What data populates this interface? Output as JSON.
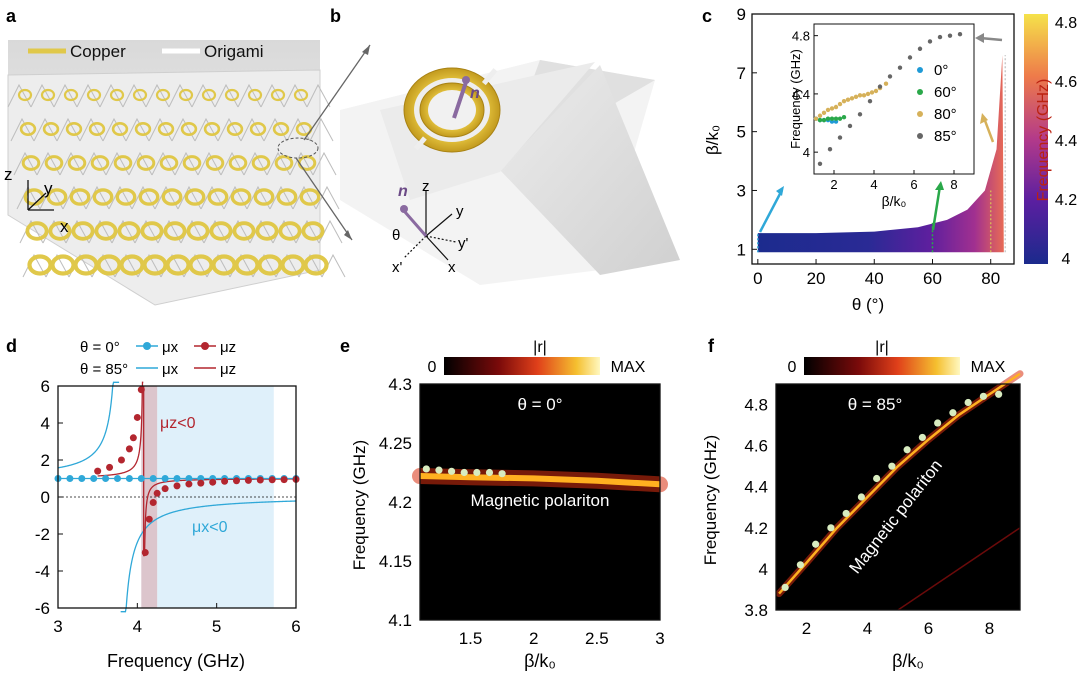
{
  "panel_labels": {
    "a": "a",
    "b": "b",
    "c": "c",
    "d": "d",
    "e": "e",
    "f": "f"
  },
  "panel_a": {
    "legend": [
      "Copper",
      "Origami"
    ],
    "colors": {
      "copper": "#e0c84a",
      "origami": "#ffffff"
    },
    "axes": {
      "z": "z",
      "y": "y",
      "x": "x"
    }
  },
  "panel_b": {
    "vector": "n",
    "axes": {
      "z": "z",
      "y": "y",
      "x": "x",
      "yp": "y'",
      "xp": "x'",
      "theta": "θ"
    }
  },
  "chart_data": [
    {
      "id": "c-main",
      "type": "heatmap",
      "xlabel": "θ (°)",
      "ylabel": "β/k₀",
      "xlim": [
        -2,
        88
      ],
      "ylim": [
        0.5,
        9
      ],
      "xticks": [
        0,
        20,
        40,
        60,
        80
      ],
      "yticks": [
        1,
        3,
        5,
        7,
        9
      ],
      "colorbar": {
        "label": "Frequency (GHz)",
        "ticks": [
          4,
          4.2,
          4.4,
          4.6,
          4.8
        ],
        "range": [
          4,
          4.8
        ]
      },
      "boundary": [
        [
          0,
          1.55
        ],
        [
          20,
          1.55
        ],
        [
          40,
          1.6
        ],
        [
          55,
          1.75
        ],
        [
          65,
          2.0
        ],
        [
          72,
          2.35
        ],
        [
          78,
          3.0
        ],
        [
          82,
          4.4
        ],
        [
          84,
          7.6
        ]
      ],
      "marked_angles": [
        0,
        60,
        80,
        85
      ],
      "inset": {
        "xlabel": "β/k₀",
        "ylabel": "Frequency (GHz)",
        "xlim": [
          1,
          9
        ],
        "ylim": [
          3.85,
          4.88
        ],
        "xticks": [
          2,
          4,
          6,
          8
        ],
        "yticks": [
          4,
          4.4,
          4.8
        ],
        "series": [
          {
            "name": "0°",
            "color": "#1f9ad6",
            "x": [
              1.1,
              1.3,
              1.5,
              1.7,
              1.9,
              2.1
            ],
            "y": [
              4.23,
              4.22,
              4.22,
              4.22,
              4.21,
              4.21
            ]
          },
          {
            "name": "60°",
            "color": "#2aa84a",
            "x": [
              1.3,
              1.5,
              1.7,
              1.9,
              2.1,
              2.3,
              2.5
            ],
            "y": [
              4.22,
              4.22,
              4.23,
              4.23,
              4.23,
              4.23,
              4.24
            ]
          },
          {
            "name": "80°",
            "color": "#d6b15a",
            "x": [
              1.1,
              1.3,
              1.5,
              1.7,
              1.9,
              2.1,
              2.3,
              2.5,
              2.7,
              2.9,
              3.1,
              3.3,
              3.5,
              3.7,
              3.9,
              4.1,
              4.3,
              4.6
            ],
            "y": [
              4.23,
              4.25,
              4.27,
              4.29,
              4.3,
              4.31,
              4.33,
              4.35,
              4.36,
              4.37,
              4.38,
              4.39,
              4.39,
              4.4,
              4.41,
              4.42,
              4.44,
              4.47
            ]
          },
          {
            "name": "85°",
            "color": "#666666",
            "x": [
              1.3,
              1.8,
              2.3,
              2.8,
              3.3,
              3.8,
              4.3,
              4.8,
              5.3,
              5.8,
              6.3,
              6.8,
              7.3,
              7.8,
              8.3
            ],
            "y": [
              3.92,
              4.02,
              4.1,
              4.18,
              4.26,
              4.35,
              4.45,
              4.52,
              4.58,
              4.65,
              4.71,
              4.76,
              4.79,
              4.8,
              4.81
            ]
          }
        ]
      }
    },
    {
      "id": "d",
      "type": "line",
      "xlabel": "Frequency (GHz)",
      "xlim": [
        3,
        6
      ],
      "ylim": [
        -6,
        6
      ],
      "xticks": [
        3,
        4,
        5,
        6
      ],
      "yticks": [
        -6,
        -4,
        -2,
        0,
        2,
        4,
        6
      ],
      "legend": {
        "row1_label": "θ = 0°",
        "row2_label": "θ = 85°",
        "mu_x": "μx",
        "mu_z": "μz"
      },
      "annotations": {
        "mu_z_neg": "μz<0",
        "mu_x_neg": "μx<0"
      },
      "colors": {
        "mu_x": "#2fa8d8",
        "mu_z": "#b3262f",
        "shade_x": "#dff0fa",
        "shade_z": "#dcc5cc"
      },
      "shaded": {
        "mu_z_band": [
          4.05,
          4.25
        ],
        "mu_x_band": [
          4.25,
          5.72
        ]
      },
      "series": [
        {
          "name": "μx θ=0° points",
          "x": [
            3.0,
            3.15,
            3.3,
            3.45,
            3.6,
            3.75,
            3.9,
            4.05,
            4.2,
            4.35,
            4.5,
            4.65,
            4.8,
            4.95,
            5.1,
            5.25,
            5.4,
            5.55,
            5.7,
            5.85,
            6.0
          ],
          "y": [
            1,
            1,
            1,
            1,
            1,
            1,
            1,
            1,
            1,
            1,
            1,
            1,
            1,
            1,
            1,
            1,
            1,
            1,
            1,
            1,
            1
          ]
        },
        {
          "name": "μz θ=0° points",
          "x": [
            3.5,
            3.65,
            3.8,
            3.9,
            3.95,
            4.0,
            4.05,
            4.1,
            4.15,
            4.2,
            4.25,
            4.35,
            4.5,
            4.65,
            4.8,
            4.95,
            5.1,
            5.25,
            5.4,
            5.55,
            5.7,
            5.85,
            6.0
          ],
          "y": [
            1.4,
            1.6,
            2.0,
            2.6,
            3.2,
            4.3,
            5.8,
            -3.0,
            -1.2,
            -0.3,
            0.2,
            0.45,
            0.6,
            0.7,
            0.75,
            0.8,
            0.85,
            0.88,
            0.9,
            0.92,
            0.93,
            0.94,
            0.95
          ]
        }
      ]
    },
    {
      "id": "e",
      "type": "heatmap",
      "title": "θ = 0°",
      "xlabel": "β/k₀",
      "ylabel": "Frequency (GHz)",
      "xlim": [
        1.1,
        3
      ],
      "ylim": [
        4.1,
        4.3
      ],
      "xticks": [
        1.5,
        2,
        2.5,
        3
      ],
      "yticks": [
        4.1,
        4.15,
        4.2,
        4.25,
        4.3
      ],
      "colorbar": {
        "label": "|r|",
        "min_label": "0",
        "max_label": "MAX"
      },
      "band_label": "Magnetic polariton",
      "band": {
        "x": [
          1.1,
          1.5,
          2.0,
          2.5,
          3.0
        ],
        "y": [
          4.222,
          4.221,
          4.22,
          4.218,
          4.215
        ]
      },
      "points": {
        "x": [
          1.15,
          1.25,
          1.35,
          1.45,
          1.55,
          1.65,
          1.75
        ],
        "y": [
          4.228,
          4.227,
          4.226,
          4.225,
          4.225,
          4.225,
          4.224
        ]
      }
    },
    {
      "id": "f",
      "type": "heatmap",
      "title": "θ = 85°",
      "xlabel": "β/k₀",
      "ylabel": "Frequency (GHz)",
      "xlim": [
        1,
        9
      ],
      "ylim": [
        3.8,
        4.9
      ],
      "xticks": [
        2,
        4,
        6,
        8
      ],
      "yticks": [
        3.8,
        4,
        4.2,
        4.4,
        4.6,
        4.8
      ],
      "colorbar": {
        "label": "|r|",
        "min_label": "0",
        "max_label": "MAX"
      },
      "band_label": "Magnetic polariton",
      "band": {
        "x": [
          1.1,
          2,
          3,
          4,
          5,
          6,
          7,
          8,
          9
        ],
        "y": [
          3.88,
          4.03,
          4.2,
          4.35,
          4.5,
          4.63,
          4.75,
          4.85,
          4.95
        ]
      },
      "points": {
        "x": [
          1.3,
          1.8,
          2.3,
          2.8,
          3.3,
          3.8,
          4.3,
          4.8,
          5.3,
          5.8,
          6.3,
          6.8,
          7.3,
          7.8,
          8.3
        ],
        "y": [
          3.91,
          4.02,
          4.12,
          4.2,
          4.27,
          4.35,
          4.44,
          4.5,
          4.58,
          4.64,
          4.71,
          4.76,
          4.81,
          4.84,
          4.85
        ]
      }
    }
  ]
}
